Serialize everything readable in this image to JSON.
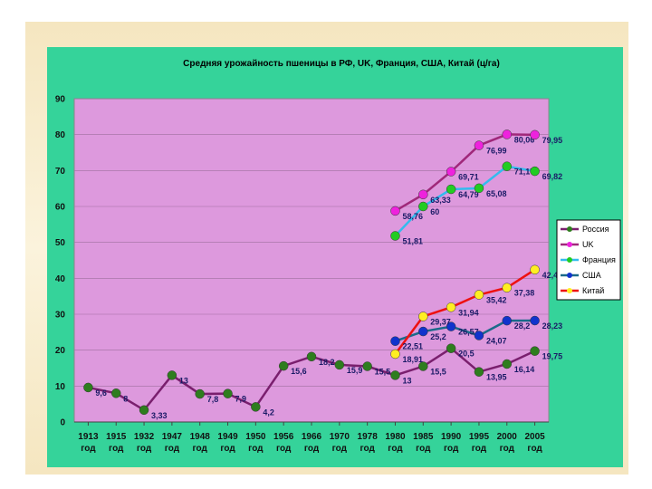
{
  "chart_data": {
    "type": "line",
    "title": "Средняя урожайность пшеницы в РФ, UK, Франция, США, Китай (ц/га)",
    "xlabel": "",
    "ylabel": "",
    "ylim": [
      0,
      90
    ],
    "yticks": [
      "0",
      "10",
      "20",
      "30",
      "40",
      "50",
      "60",
      "70",
      "80",
      "90"
    ],
    "categories": [
      {
        "year": "1913",
        "suffix": "год"
      },
      {
        "year": "1915",
        "suffix": "год"
      },
      {
        "year": "1932",
        "suffix": "год"
      },
      {
        "year": "1947",
        "suffix": "год"
      },
      {
        "year": "1948",
        "suffix": "год"
      },
      {
        "year": "1949",
        "suffix": "год"
      },
      {
        "year": "1950",
        "suffix": "год"
      },
      {
        "year": "1956",
        "suffix": "год"
      },
      {
        "year": "1966",
        "suffix": "год"
      },
      {
        "year": "1970",
        "suffix": "год"
      },
      {
        "year": "1978",
        "suffix": "год"
      },
      {
        "year": "1980",
        "suffix": "год"
      },
      {
        "year": "1985",
        "suffix": "год"
      },
      {
        "year": "1990",
        "suffix": "год"
      },
      {
        "year": "1995",
        "suffix": "год"
      },
      {
        "year": "2000",
        "suffix": "год"
      },
      {
        "year": "2005",
        "suffix": "год"
      }
    ],
    "legend_position": "right",
    "series": [
      {
        "name": "Россия",
        "line_color": "#7a1f6e",
        "marker_color": "#2e7d1e",
        "values": [
          9.6,
          8,
          3.33,
          13,
          7.8,
          7.9,
          4.2,
          15.6,
          18.2,
          15.9,
          15.5,
          13,
          15.5,
          20.5,
          13.95,
          16.14,
          19.75
        ],
        "labels": [
          "9,6",
          "8",
          "3,33",
          "13",
          "7,8",
          "7,9",
          "4,2",
          "15,6",
          "18,2",
          "15,9",
          "15,5",
          "13",
          "15,5",
          "20,5",
          "13,95",
          "16,14",
          "19,75"
        ]
      },
      {
        "name": "UK",
        "line_color": "#a0287a",
        "marker_color": "#ee22dd",
        "values": [
          null,
          null,
          null,
          null,
          null,
          null,
          null,
          null,
          null,
          null,
          null,
          58.76,
          63.33,
          69.71,
          76.99,
          80.06,
          79.95
        ],
        "labels": [
          "",
          "",
          "",
          "",
          "",
          "",
          "",
          "",
          "",
          "",
          "",
          "58,76",
          "63,33",
          "69,71",
          "76,99",
          "80,06",
          "79,95"
        ]
      },
      {
        "name": "Франция",
        "line_color": "#33bbee",
        "marker_color": "#22cc22",
        "values": [
          null,
          null,
          null,
          null,
          null,
          null,
          null,
          null,
          null,
          null,
          null,
          51.81,
          60,
          64.79,
          65.08,
          71.17,
          69.82
        ],
        "labels": [
          "",
          "",
          "",
          "",
          "",
          "",
          "",
          "",
          "",
          "",
          "",
          "51,81",
          "60",
          "64,79",
          "65,08",
          "71,17",
          "69,82"
        ]
      },
      {
        "name": "США",
        "line_color": "#1a6a8a",
        "marker_color": "#1133cc",
        "values": [
          null,
          null,
          null,
          null,
          null,
          null,
          null,
          null,
          null,
          null,
          null,
          22.51,
          25.2,
          26.57,
          24.07,
          28.2,
          28.23
        ],
        "labels": [
          "",
          "",
          "",
          "",
          "",
          "",
          "",
          "",
          "",
          "",
          "",
          "22,51",
          "25,2",
          "26,57",
          "24,07",
          "28,2",
          "28,23"
        ]
      },
      {
        "name": "Китай",
        "line_color": "#ee1111",
        "marker_color": "#ffee22",
        "values": [
          null,
          null,
          null,
          null,
          null,
          null,
          null,
          null,
          null,
          null,
          null,
          18.91,
          29.37,
          31.94,
          35.42,
          37.38,
          42.4
        ],
        "labels": [
          "",
          "",
          "",
          "",
          "",
          "",
          "",
          "",
          "",
          "",
          "",
          "18,91",
          "29,37",
          "31,94",
          "35,42",
          "37,38",
          "42,4"
        ]
      }
    ]
  },
  "colors": {
    "slide_background": "#35d39a",
    "plot_background": "#dd99dd",
    "frame": "#f5e6c0"
  }
}
